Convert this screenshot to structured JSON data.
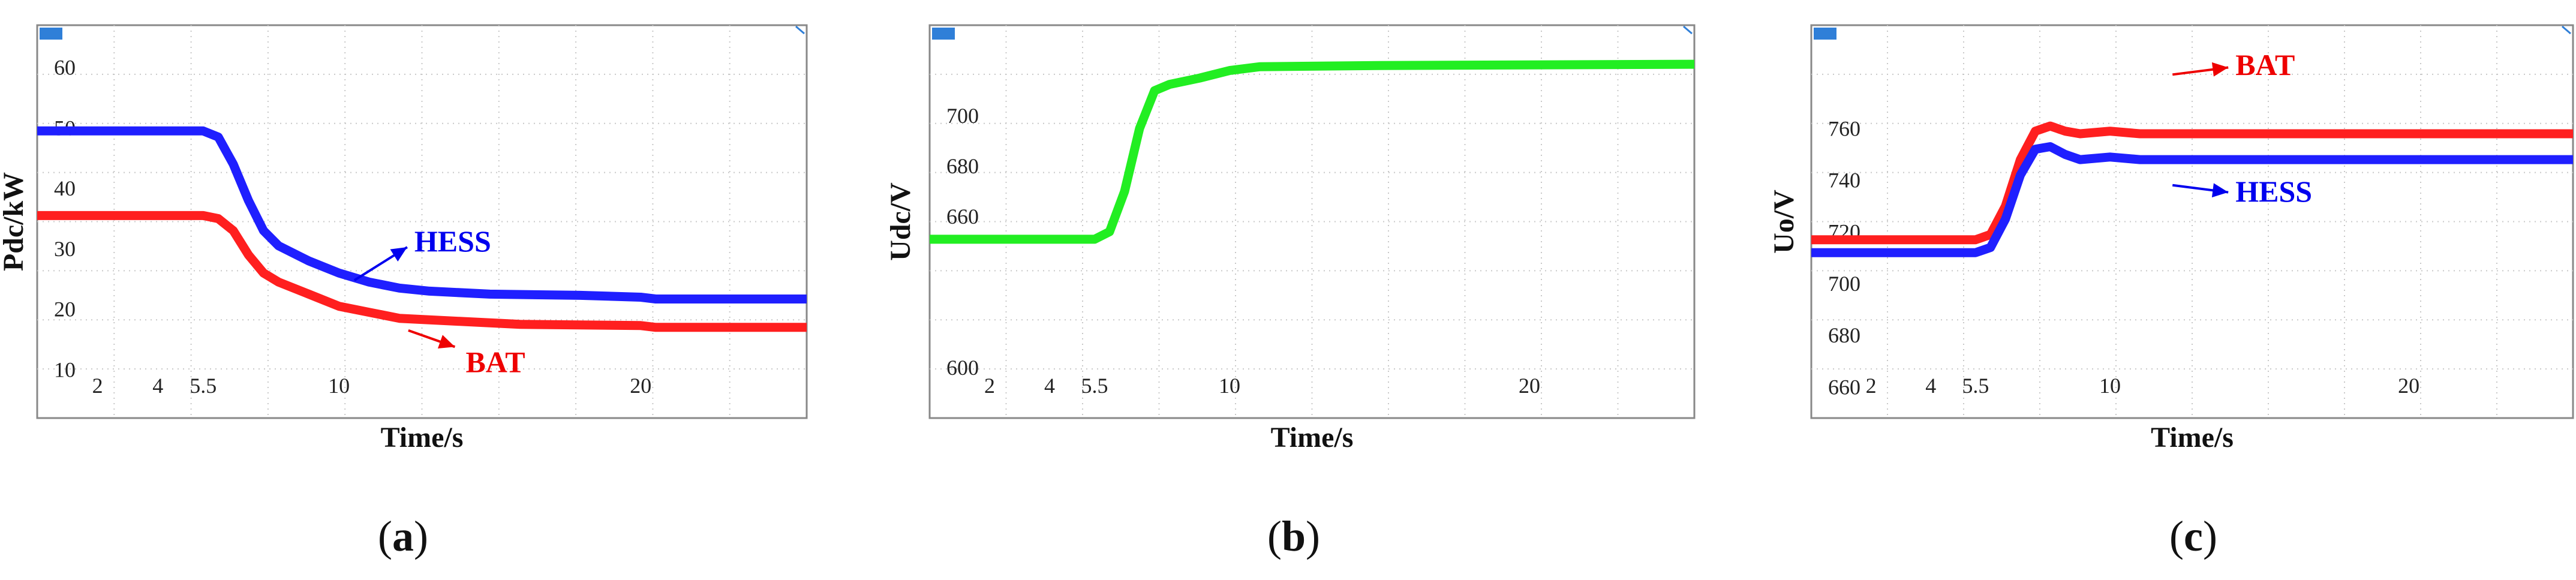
{
  "chart_data": [
    {
      "type": "line",
      "panel_label": "(a)",
      "xlabel": "Time/s",
      "ylabel": "Pdc/kW",
      "xlim": [
        0,
        25.5
      ],
      "ylim": [
        2,
        67
      ],
      "x_ticks": [
        2,
        4,
        5.5,
        10,
        20
      ],
      "y_ticks": [
        10,
        20,
        30,
        40,
        50,
        60
      ],
      "grid": true,
      "series": [
        {
          "name": "HESS",
          "color": "#1f1fff",
          "x": [
            0,
            5.5,
            6.0,
            6.5,
            7.0,
            7.5,
            8.0,
            9.0,
            10.0,
            11.0,
            12.0,
            13.0,
            15.0,
            18.0,
            20.0,
            20.5,
            25.5
          ],
          "y": [
            49.5,
            49.5,
            48.5,
            44,
            38,
            33,
            30.5,
            28,
            26,
            24.5,
            23.5,
            23,
            22.5,
            22.3,
            22,
            21.7,
            21.7
          ]
        },
        {
          "name": "BAT",
          "color": "#ff1f1f",
          "x": [
            0,
            5.5,
            6.0,
            6.5,
            7.0,
            7.5,
            8.0,
            9.0,
            10.0,
            11.0,
            12.0,
            14.0,
            16.0,
            20.0,
            20.5,
            25.5
          ],
          "y": [
            35.5,
            35.5,
            35,
            33,
            29,
            26,
            24.5,
            22.5,
            20.5,
            19.5,
            18.5,
            18,
            17.5,
            17.3,
            17,
            17
          ]
        }
      ],
      "annotations": [
        {
          "text": "HESS",
          "x": 12.5,
          "y": 31,
          "color": "#0000ee",
          "arrow_to": [
            12.4,
            27
          ]
        },
        {
          "text": "BAT",
          "x": 14.2,
          "y": 11,
          "color": "#ee0000",
          "arrow_from": [
            12.3,
            16.5
          ]
        }
      ]
    },
    {
      "type": "line",
      "panel_label": "(b)",
      "xlabel": "Time/s",
      "ylabel": "Udc/V",
      "xlim": [
        0,
        25.5
      ],
      "ylim": [
        580,
        736
      ],
      "x_ticks": [
        2,
        4,
        5.5,
        10,
        20
      ],
      "y_ticks": [
        600,
        660,
        680,
        700
      ],
      "grid": true,
      "series": [
        {
          "name": "",
          "color": "#22ee22",
          "x": [
            0,
            5.5,
            6.0,
            6.5,
            7.0,
            7.5,
            8.0,
            9.0,
            10.0,
            11.0,
            15.0,
            25.5
          ],
          "y": [
            651,
            651,
            654,
            670,
            695,
            710,
            712.5,
            715,
            718,
            719.5,
            720,
            720.5
          ]
        }
      ]
    },
    {
      "type": "line",
      "panel_label": "(c)",
      "xlabel": "Time/s",
      "ylabel": "Uo/V",
      "xlim": [
        0,
        25.5
      ],
      "ylim": [
        648,
        800
      ],
      "x_ticks": [
        2,
        4,
        5.5,
        10,
        20
      ],
      "y_ticks": [
        660,
        680,
        700,
        720,
        740,
        760
      ],
      "grid": true,
      "series": [
        {
          "name": "BAT",
          "color": "#ff1f1f",
          "x": [
            0,
            5.5,
            6.0,
            6.5,
            7.0,
            7.5,
            8.0,
            8.5,
            9.0,
            10.0,
            11.0,
            25.5
          ],
          "y": [
            717,
            717,
            719,
            730,
            748,
            759,
            761,
            759,
            758,
            759,
            758,
            758
          ]
        },
        {
          "name": "HESS",
          "color": "#1f1fff",
          "x": [
            0,
            5.5,
            6.0,
            6.5,
            7.0,
            7.5,
            8.0,
            8.5,
            9.0,
            10.0,
            11.0,
            25.5
          ],
          "y": [
            712,
            712,
            714,
            725,
            742,
            752,
            753,
            750,
            748,
            749,
            748,
            748
          ]
        }
      ],
      "annotations": [
        {
          "text": "BAT",
          "x": 14.2,
          "y": 784,
          "color": "#ee0000",
          "arrow_to": [
            14.0,
            782
          ]
        },
        {
          "text": "HESS",
          "x": 14.2,
          "y": 735,
          "color": "#0000ee",
          "arrow_to": [
            14.0,
            737
          ]
        }
      ]
    }
  ]
}
